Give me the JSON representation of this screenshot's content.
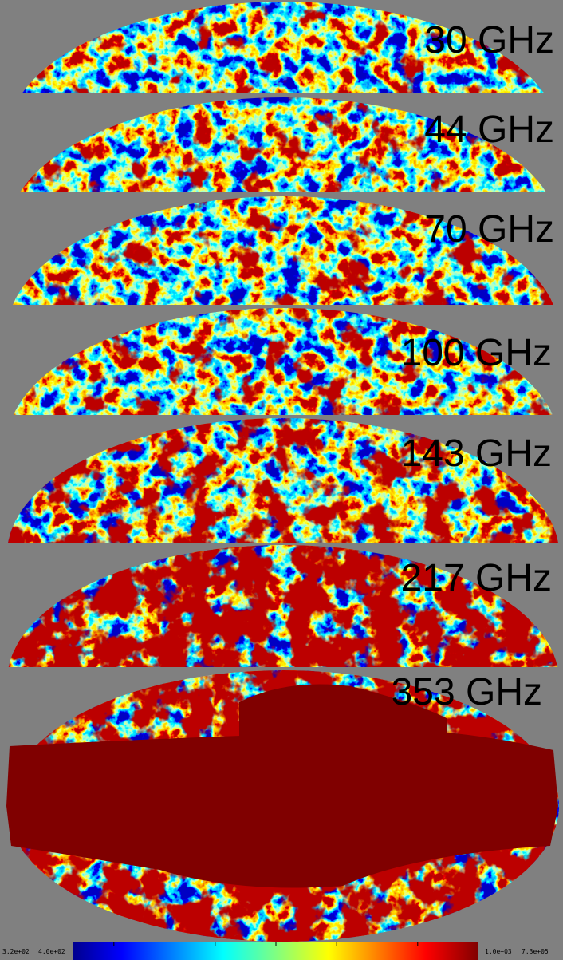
{
  "panels": [
    {
      "label": "30 GHz"
    },
    {
      "label": "44 GHz"
    },
    {
      "label": "70 GHz"
    },
    {
      "label": "100 GHz"
    },
    {
      "label": "143 GHz"
    },
    {
      "label": "217 GHz"
    },
    {
      "label": "353 GHz"
    }
  ],
  "colorbar": {
    "labels": [
      "3.2e+02",
      "4.0e+02",
      "1.0e+03",
      "7.3e+05"
    ]
  }
}
